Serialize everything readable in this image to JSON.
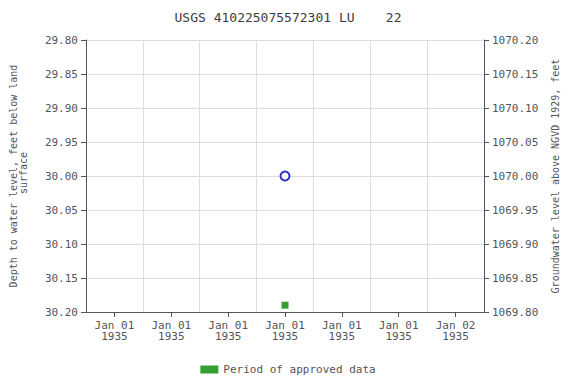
{
  "chart_data": {
    "type": "scatter",
    "title": "USGS 410225075572301 LU    22",
    "ylabel": "Depth to water level, feet below land\n surface",
    "y2label": "Groundwater level above NGVD 1929, feet",
    "categories": [
      "Jan 01\n1935",
      "Jan 01\n1935",
      "Jan 01\n1935",
      "Jan 01\n1935",
      "Jan 01\n1935",
      "Jan 01\n1935",
      "Jan 02\n1935"
    ],
    "series": [
      {
        "color": "#0000bb",
        "marker": "circle_open",
        "values": [
          null,
          null,
          null,
          30.0,
          null,
          null,
          null
        ]
      },
      {
        "name": "Period of approved data",
        "color": "#008800",
        "marker": "square",
        "values": [
          null,
          null,
          null,
          30.19,
          null,
          null,
          null
        ]
      }
    ],
    "ylim": [
      30.2,
      29.8
    ],
    "yticks": [
      {
        "value": 29.8,
        "label": "29.80"
      },
      29.85,
      {
        "value": 29.9,
        "label": "29.90"
      },
      29.95,
      {
        "value": 30.0,
        "label": "30.00"
      },
      30.05,
      {
        "value": 30.1,
        "label": "30.10"
      },
      30.15,
      {
        "value": 30.2,
        "label": "30.20"
      }
    ],
    "y2lim": [
      1069.8,
      1070.2
    ],
    "y2ticks": [
      {
        "value": 1069.8,
        "label": "1069.80"
      },
      1069.85,
      {
        "value": 1069.9,
        "label": "1069.90"
      },
      1069.95,
      {
        "value": 1070.0,
        "label": "1070.00"
      },
      1070.05,
      {
        "value": 1070.1,
        "label": "1070.10"
      },
      1070.15,
      {
        "value": 1070.2,
        "label": "1070.20"
      }
    ],
    "grid": true,
    "legend": "bottom"
  }
}
